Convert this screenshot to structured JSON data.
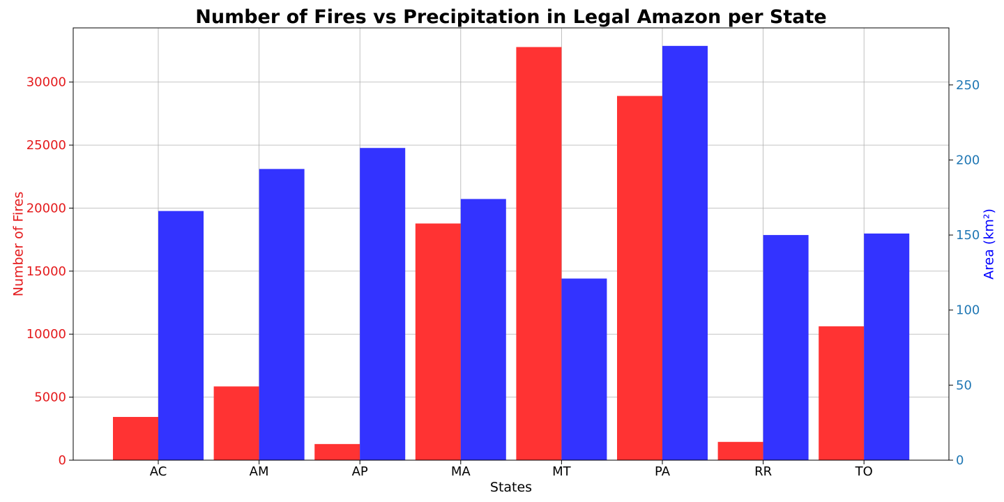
{
  "chart_data": {
    "type": "bar",
    "title": "Number of Fires vs Precipitation in Legal Amazon per State",
    "xlabel": "States",
    "categories": [
      "AC",
      "AM",
      "AP",
      "MA",
      "MT",
      "PA",
      "RR",
      "TO"
    ],
    "series": [
      {
        "axis": "left",
        "color": "#ff3333",
        "values": [
          3430,
          5850,
          1280,
          18780,
          32780,
          28900,
          1450,
          10620
        ]
      },
      {
        "axis": "right",
        "color": "#3333ff",
        "values": [
          166,
          194,
          208,
          174,
          121,
          276,
          150,
          151
        ]
      }
    ],
    "y_left": {
      "label": "Number of Fires",
      "label_color": "#e41a1c",
      "tick_color": "#e41a1c",
      "ylim": [
        0,
        34300
      ],
      "ticks": [
        "0",
        "5000",
        "10000",
        "15000",
        "20000",
        "25000",
        "30000"
      ]
    },
    "y_right": {
      "label": "Area (km²)",
      "label_color": "#0000ff",
      "tick_color": "#1f77b4",
      "ylim": [
        0,
        288
      ],
      "ticks": [
        "0",
        "50",
        "100",
        "150",
        "200",
        "250"
      ]
    },
    "grid": true,
    "legend": "none"
  }
}
